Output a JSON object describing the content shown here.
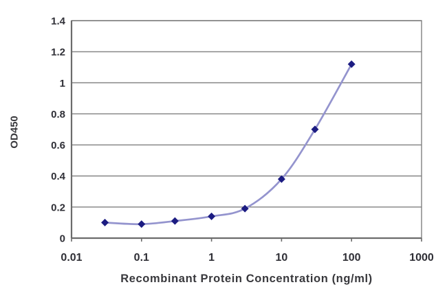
{
  "chart_data": {
    "type": "line",
    "title": "",
    "xlabel": "Recombinant Protein Concentration (ng/ml)",
    "ylabel": "OD450",
    "x_scale": "log",
    "xlim": [
      0.01,
      1000
    ],
    "ylim": [
      0,
      1.4
    ],
    "grid": "horizontal",
    "legend": "none",
    "background": "#ffffff",
    "grid_color": "#7f7f7f",
    "axis_color": "#6b6b6b",
    "text_color": "#2f2f36",
    "x_ticks": [
      {
        "value": 0.01,
        "label": "0.01"
      },
      {
        "value": 0.1,
        "label": "0.1"
      },
      {
        "value": 1,
        "label": "1"
      },
      {
        "value": 10,
        "label": "10"
      },
      {
        "value": 100,
        "label": "100"
      },
      {
        "value": 1000,
        "label": "1000"
      }
    ],
    "y_ticks": [
      {
        "value": 0,
        "label": "0"
      },
      {
        "value": 0.2,
        "label": "0.2"
      },
      {
        "value": 0.4,
        "label": "0.4"
      },
      {
        "value": 0.6,
        "label": "0.6"
      },
      {
        "value": 0.8,
        "label": "0.8"
      },
      {
        "value": 1,
        "label": "1"
      },
      {
        "value": 1.2,
        "label": "1.2"
      },
      {
        "value": 1.4,
        "label": "1.4"
      }
    ],
    "series": [
      {
        "name": "OD450",
        "x": [
          0.03,
          0.1,
          0.3,
          1,
          3,
          10,
          30,
          100
        ],
        "y": [
          0.1,
          0.09,
          0.11,
          0.14,
          0.19,
          0.38,
          0.7,
          1.12
        ],
        "line_color": "#9494ce",
        "marker_color": "#1c1c82",
        "marker": "diamond",
        "smooth": true
      }
    ]
  }
}
